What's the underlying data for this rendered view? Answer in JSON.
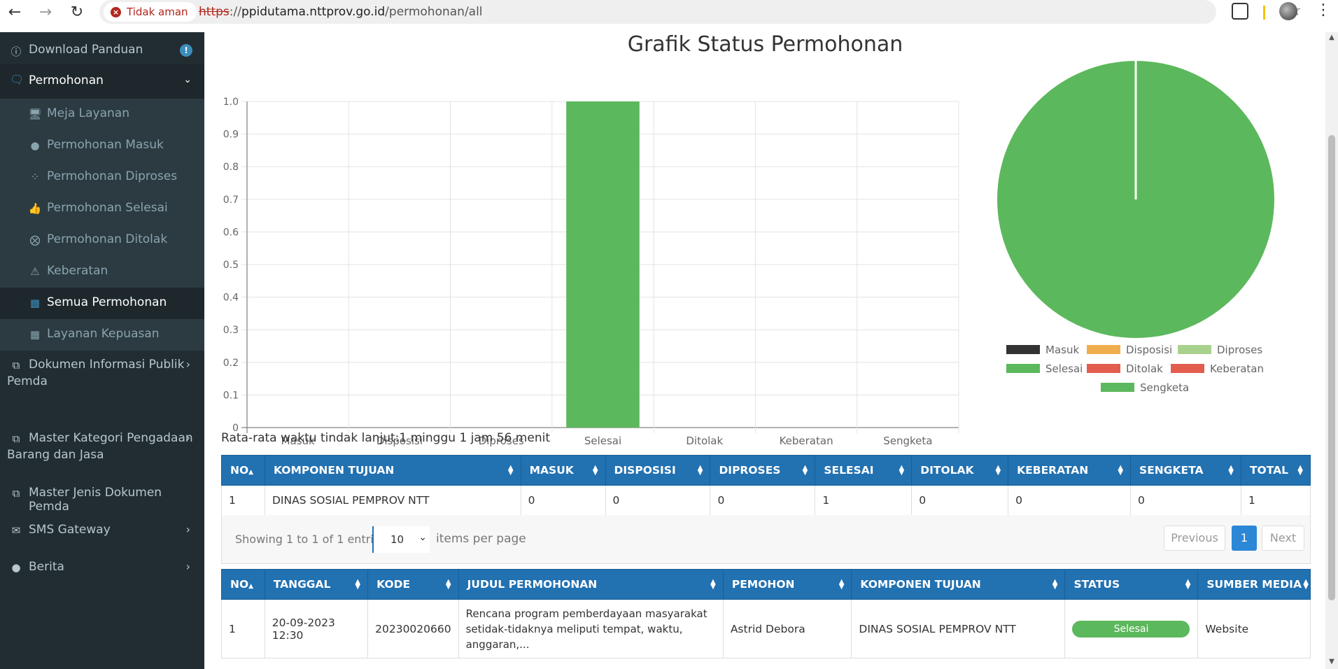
{
  "browser": {
    "security_label": "Tidak aman",
    "url_scheme": "https",
    "url_rest": "://",
    "url_host": "ppidutama.nttprov.go.id",
    "url_path": "/permohonan/all"
  },
  "sidebar": {
    "download_panduan": "Download Panduan",
    "permohonan": "Permohonan",
    "sub_items": [
      {
        "label": "Meja Layanan",
        "icon": "desktop-icon"
      },
      {
        "label": "Permohonan Masuk",
        "icon": "comment-icon"
      },
      {
        "label": "Permohonan Diproses",
        "icon": "spinner-icon"
      },
      {
        "label": "Permohonan Selesai",
        "icon": "thumbs-up-icon"
      },
      {
        "label": "Permohonan Ditolak",
        "icon": "times-circle-icon"
      },
      {
        "label": "Keberatan",
        "icon": "warning-icon"
      },
      {
        "label": "Semua Permohonan",
        "icon": "grid-icon"
      },
      {
        "label": "Layanan Kepuasan",
        "icon": "grid-icon"
      }
    ],
    "dokumen_line1": "Dokumen Informasi Publik",
    "dokumen_line2": "Pemda",
    "master_kategori_line1": "Master Kategori Pengadaan",
    "master_kategori_line2": "Barang dan Jasa",
    "master_jenis": "Master Jenis Dokumen Pemda",
    "sms_gateway": "SMS Gateway",
    "berita": "Berita",
    "badge": "!"
  },
  "chart_title": "Grafik Status Permohonan",
  "chart_data": [
    {
      "type": "bar",
      "categories": [
        "Masuk",
        "Disposisi",
        "Diproses",
        "Selesai",
        "Ditolak",
        "Keberatan",
        "Sengketa"
      ],
      "values": [
        0,
        0,
        0,
        1,
        0,
        0,
        0
      ],
      "ylim": [
        0,
        1.0
      ],
      "yticks": [
        "0",
        "0.1",
        "0.2",
        "0.3",
        "0.4",
        "0.5",
        "0.6",
        "0.7",
        "0.8",
        "0.9",
        "1.0"
      ],
      "bar_color": "#5cb85c",
      "grid": true
    },
    {
      "type": "pie",
      "labels": [
        "Masuk",
        "Disposisi",
        "Diproses",
        "Selesai",
        "Ditolak",
        "Keberatan",
        "Sengketa"
      ],
      "values": [
        0,
        0,
        0,
        1,
        0,
        0,
        0
      ],
      "colors": [
        "#333333",
        "#f0ad4e",
        "#a9d18e",
        "#5cb85c",
        "#e35d4f",
        "#e35d4f",
        "#5cb85c"
      ],
      "legend_position": "bottom"
    }
  ],
  "avg_text": "Rata-rata waktu tindak lanjut:1 minggu 1 jam 56 menit",
  "summary_table": {
    "headers": [
      "NO",
      "KOMPONEN TUJUAN",
      "MASUK",
      "DISPOSISI",
      "DIPROSES",
      "SELESAI",
      "DITOLAK",
      "KEBERATAN",
      "SENGKETA",
      "TOTAL"
    ],
    "rows": [
      [
        "1",
        "DINAS SOSIAL PEMPROV NTT",
        "0",
        "0",
        "0",
        "1",
        "0",
        "0",
        "0",
        "1"
      ]
    ]
  },
  "paging": {
    "info": "Showing 1 to 1 of 1 entries",
    "per_page": "10",
    "per_page_label": "items per page",
    "previous": "Previous",
    "current": "1",
    "next": "Next"
  },
  "request_table": {
    "headers": [
      "NO",
      "TANGGAL",
      "KODE",
      "JUDUL PERMOHONAN",
      "PEMOHON",
      "KOMPONEN TUJUAN",
      "STATUS",
      "SUMBER MEDIA"
    ],
    "rows": [
      {
        "no": "1",
        "tanggal": "20-09-2023 12:30",
        "kode": "20230020660",
        "judul_line1": "Rencana program pemberdayaan masyarakat",
        "judul_line2": "setidak-tidaknya meliputi tempat, waktu,",
        "judul_line3": "anggaran,...",
        "pemohon": "Astrid Debora",
        "komponen": "DINAS SOSIAL PEMPROV NTT",
        "status": "Selesai",
        "sumber": "Website"
      }
    ]
  }
}
